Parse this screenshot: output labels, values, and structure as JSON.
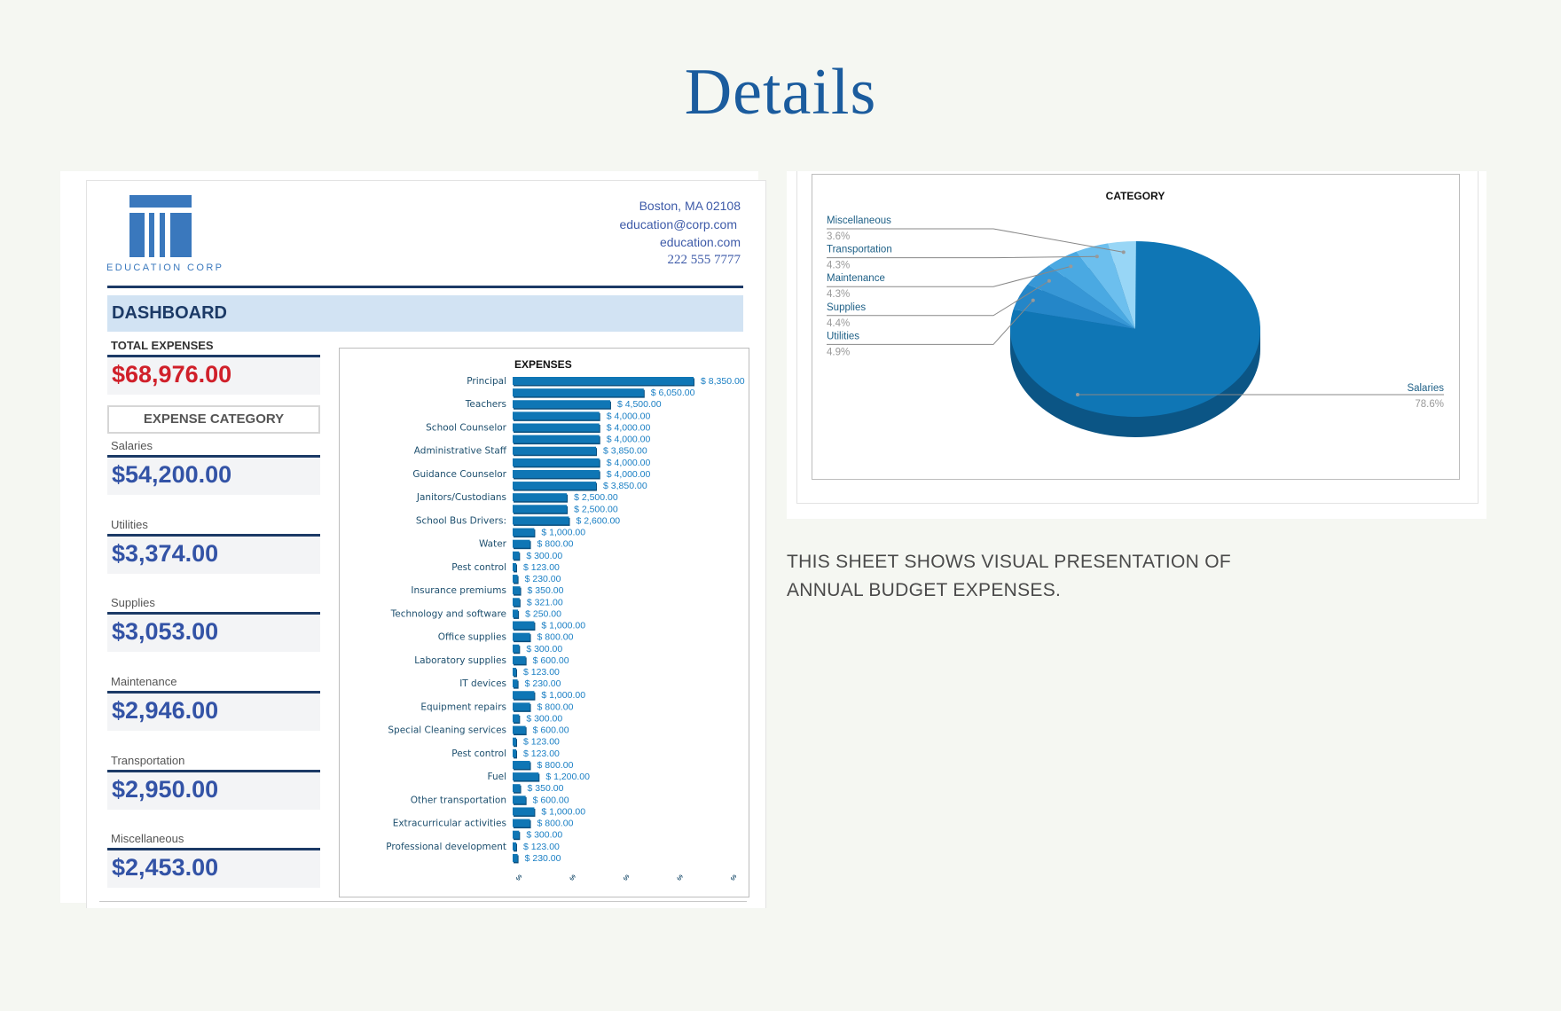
{
  "page": {
    "title": "Details"
  },
  "company": {
    "logo_text": "EDUCATION CORP",
    "address": "Boston, MA 02108",
    "email": "education@corp.com",
    "website": "education.com",
    "phone": "222 555 7777",
    "brand_color": "#3a78bd"
  },
  "dashboard": {
    "title": "DASHBOARD",
    "total_label": "TOTAL EXPENSES",
    "total_value": "$68,976.00",
    "category_header": "EXPENSE CATEGORY",
    "categories": [
      {
        "label": "Salaries",
        "value": "$54,200.00"
      },
      {
        "label": "Utilities",
        "value": "$3,374.00"
      },
      {
        "label": "Supplies",
        "value": "$3,053.00"
      },
      {
        "label": "Maintenance",
        "value": "$2,946.00"
      },
      {
        "label": "Transportation",
        "value": "$2,950.00"
      },
      {
        "label": "Miscellaneous",
        "value": "$2,453.00"
      }
    ]
  },
  "description": {
    "line1": "THIS SHEET SHOWS VISUAL PRESENTATION OF",
    "line2": "ANNUAL BUDGET EXPENSES."
  },
  "chart_data": [
    {
      "type": "bar",
      "orientation": "horizontal",
      "title": "EXPENSES",
      "categories": [
        "Principal",
        "",
        "Teachers",
        "",
        "School Counselor",
        "",
        "Administrative Staff",
        "",
        "Guidance Counselor",
        "",
        "Janitors/Custodians",
        "",
        "School Bus Drivers:",
        "",
        "Water",
        "",
        "Pest control",
        "",
        "Insurance premiums",
        "",
        "Technology and software",
        "",
        "Office supplies",
        "",
        "Laboratory supplies",
        "",
        "IT devices",
        "",
        "Equipment repairs",
        "",
        "Special Cleaning services",
        "",
        "Pest control",
        "",
        "Fuel",
        "",
        "Other transportation",
        "",
        "Extracurricular activities",
        "",
        "Professional development",
        ""
      ],
      "values": [
        8350,
        6050,
        4500,
        4000,
        4000,
        4000,
        3850,
        4000,
        4000,
        3850,
        2500,
        2500,
        2600,
        1000,
        800,
        300,
        123,
        230,
        350,
        321,
        250,
        1000,
        800,
        300,
        600,
        123,
        230,
        1000,
        800,
        300,
        600,
        123,
        123,
        800,
        1200,
        350,
        600,
        1000,
        800,
        300,
        123,
        230
      ],
      "value_labels": [
        "$ 8,350.00",
        "$ 6,050.00",
        "$ 4,500.00",
        "$ 4,000.00",
        "$ 4,000.00",
        "$ 4,000.00",
        "$ 3,850.00",
        "$ 4,000.00",
        "$ 4,000.00",
        "$ 3,850.00",
        "$ 2,500.00",
        "$ 2,500.00",
        "$ 2,600.00",
        "$ 1,000.00",
        "$ 800.00",
        "$ 300.00",
        "$ 123.00",
        "$ 230.00",
        "$ 350.00",
        "$ 321.00",
        "$ 250.00",
        "$ 1,000.00",
        "$ 800.00",
        "$ 300.00",
        "$ 600.00",
        "$ 123.00",
        "$ 230.00",
        "$ 1,000.00",
        "$ 800.00",
        "$ 300.00",
        "$ 600.00",
        "$ 123.00",
        "$ 123.00",
        "$ 800.00",
        "$ 1,200.00",
        "$ 350.00",
        "$ 600.00",
        "$ 1,000.00",
        "$ 800.00",
        "$ 300.00",
        "$ 123.00",
        "$ 230.00"
      ],
      "x_tick_labels": [
        "$",
        "$",
        "$",
        "$",
        "$"
      ],
      "xlim": [
        0,
        10000
      ],
      "bar_color": "#0f76b5",
      "grid": false
    },
    {
      "type": "pie",
      "title": "CATEGORY",
      "style": "3d",
      "slices": [
        {
          "name": "Salaries",
          "percent": 78.6,
          "label": "78.6%",
          "color": "#0f76b5"
        },
        {
          "name": "Utilities",
          "percent": 4.9,
          "label": "4.9%",
          "color": "#2486c8"
        },
        {
          "name": "Supplies",
          "percent": 4.4,
          "label": "4.4%",
          "color": "#3797d6"
        },
        {
          "name": "Maintenance",
          "percent": 4.3,
          "label": "4.3%",
          "color": "#4aa9e2"
        },
        {
          "name": "Transportation",
          "percent": 4.3,
          "label": "4.3%",
          "color": "#6cbfee"
        },
        {
          "name": "Miscellaneous",
          "percent": 3.6,
          "label": "3.6%",
          "color": "#98d6f6"
        }
      ],
      "side_color": "#0b5585"
    }
  ]
}
